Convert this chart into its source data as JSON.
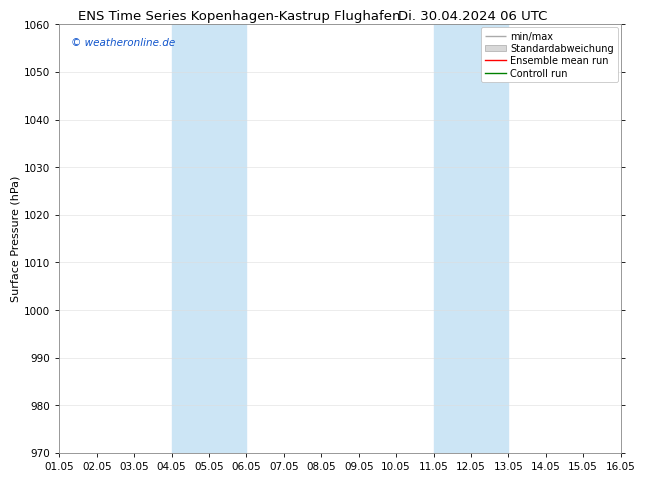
{
  "title_left": "ENS Time Series Kopenhagen-Kastrup Flughafen",
  "title_right": "Di. 30.04.2024 06 UTC",
  "ylabel": "Surface Pressure (hPa)",
  "watermark": "© weatheronline.de",
  "ylim": [
    970,
    1060
  ],
  "yticks": [
    970,
    980,
    990,
    1000,
    1010,
    1020,
    1030,
    1040,
    1050,
    1060
  ],
  "xlim": [
    0,
    15
  ],
  "xtick_positions": [
    0,
    1,
    2,
    3,
    4,
    5,
    6,
    7,
    8,
    9,
    10,
    11,
    12,
    13,
    14,
    15
  ],
  "xtick_labels": [
    "01.05",
    "02.05",
    "03.05",
    "04.05",
    "05.05",
    "06.05",
    "07.05",
    "08.05",
    "09.05",
    "10.05",
    "11.05",
    "12.05",
    "13.05",
    "14.05",
    "15.05",
    "16.05"
  ],
  "shaded_regions": [
    {
      "xmin": 3,
      "xmax": 5,
      "color": "#cce5f5"
    },
    {
      "xmin": 10,
      "xmax": 12,
      "color": "#cce5f5"
    }
  ],
  "legend_entries": [
    {
      "label": "min/max",
      "color": "#aaaaaa",
      "style": "minmax"
    },
    {
      "label": "Standardabweichung",
      "color": "#cccccc",
      "style": "std"
    },
    {
      "label": "Ensemble mean run",
      "color": "red",
      "style": "line"
    },
    {
      "label": "Controll run",
      "color": "green",
      "style": "line"
    }
  ],
  "background_color": "#ffffff",
  "plot_bg_color": "#ffffff",
  "border_color": "#000000",
  "watermark_color": "#1155cc",
  "title_fontsize": 9.5,
  "ylabel_fontsize": 8,
  "tick_fontsize": 7.5,
  "legend_fontsize": 7,
  "watermark_fontsize": 7.5
}
